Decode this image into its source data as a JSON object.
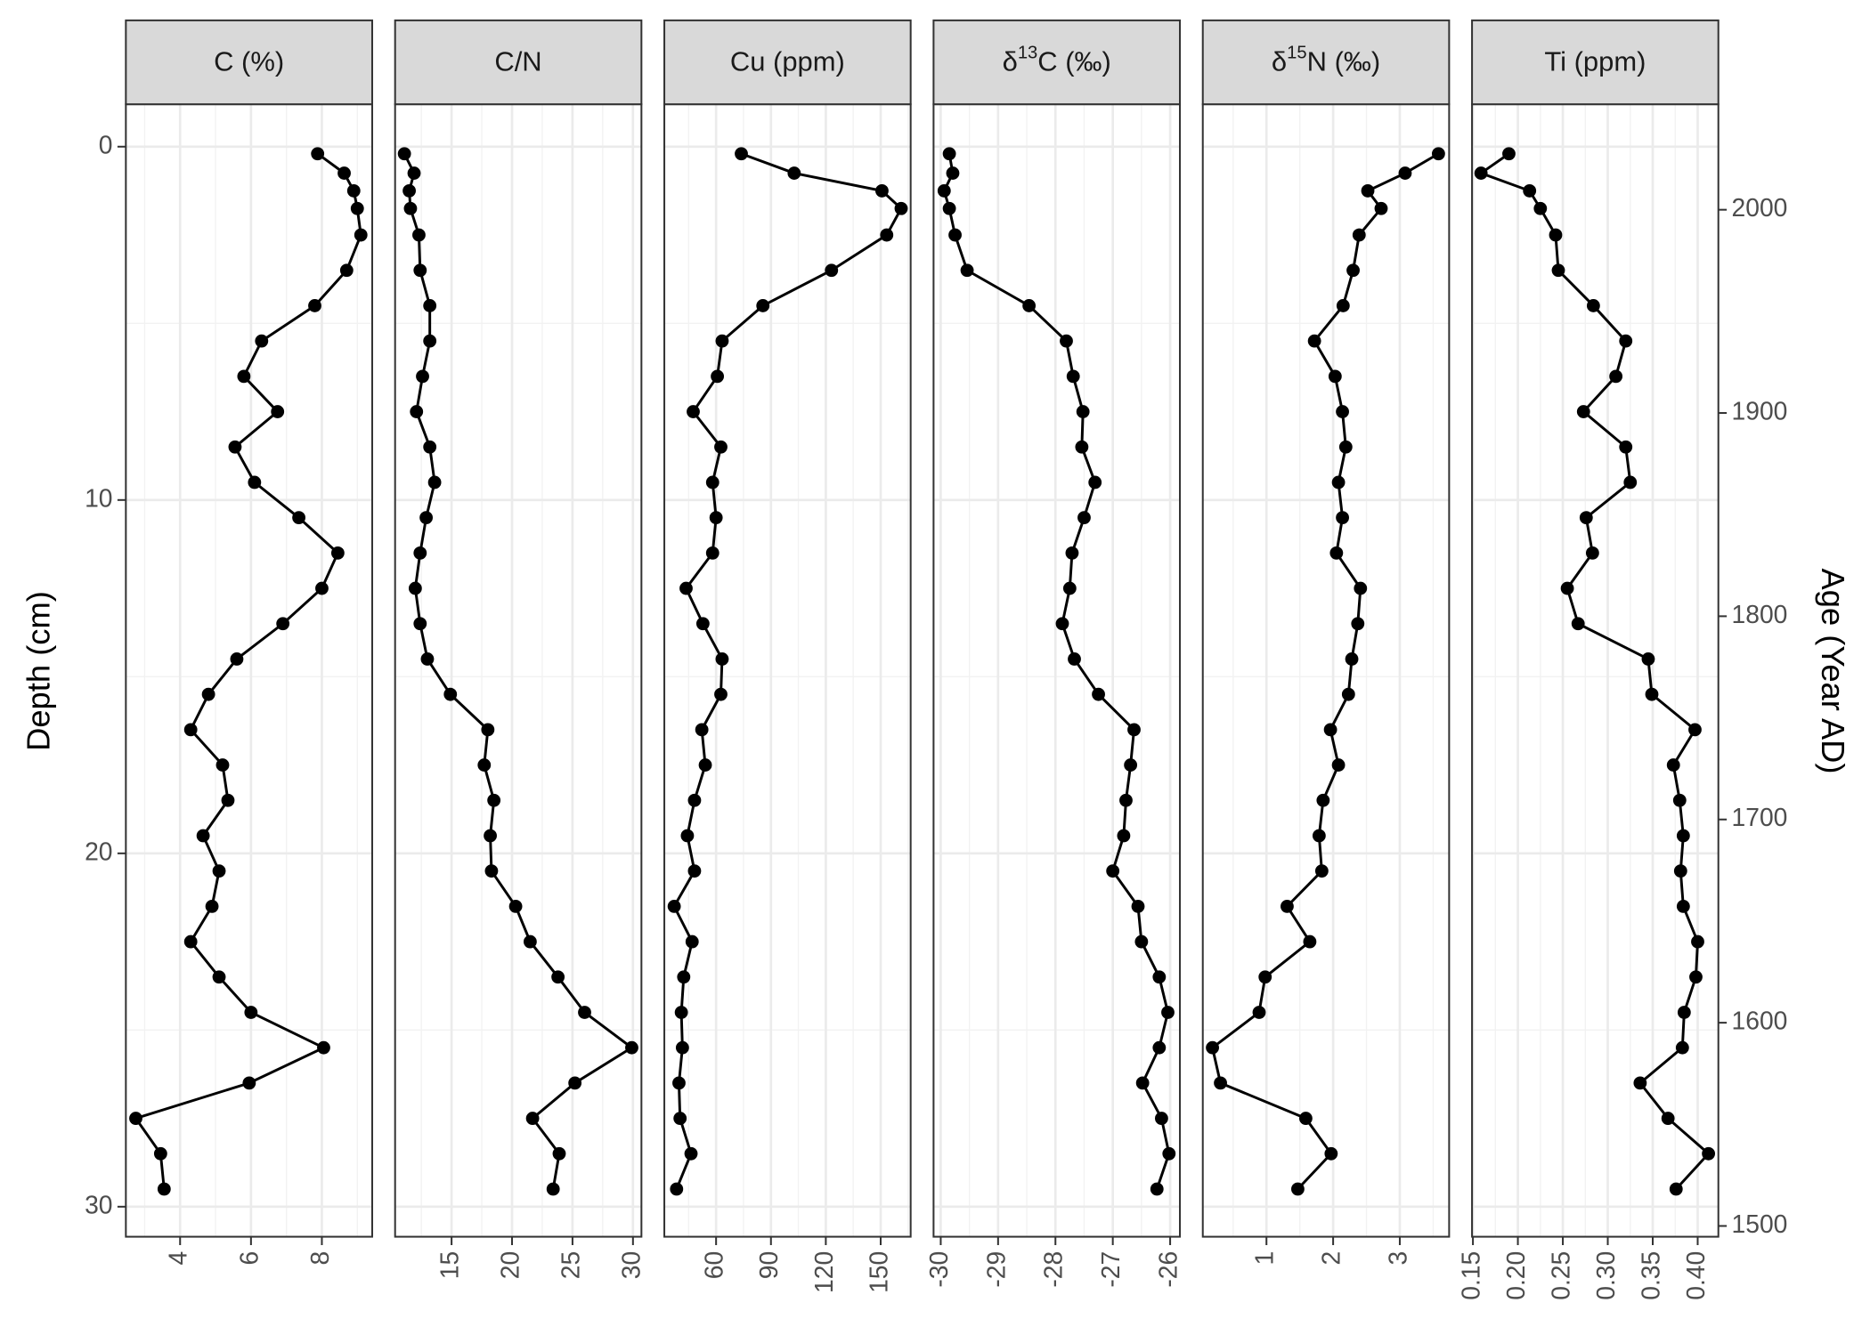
{
  "chart_data": {
    "type": "line",
    "ylabel": "Depth (cm)",
    "y2label": "Age (Year AD)",
    "ylim": [
      30.85,
      -1.2
    ],
    "yticks": [
      0,
      10,
      20,
      30
    ],
    "y2lim": [
      1494.7,
      2051.9
    ],
    "y2ticks": [
      1500,
      1600,
      1700,
      1800,
      1900,
      2000
    ],
    "color": "#000000",
    "grid": true,
    "depth": [
      0.2,
      0.75,
      1.25,
      1.75,
      2.5,
      3.5,
      4.5,
      5.5,
      6.5,
      7.5,
      8.5,
      9.5,
      10.5,
      11.5,
      12.5,
      13.5,
      14.5,
      15.5,
      16.5,
      17.5,
      18.5,
      19.5,
      20.5,
      21.5,
      22.5,
      23.5,
      24.5,
      25.5,
      26.5,
      27.5,
      28.5,
      29.5
    ],
    "panels": [
      {
        "title": "C (%)",
        "xlim": [
          2.47,
          9.42
        ],
        "xticks": [
          4,
          6,
          8
        ],
        "values": [
          7.88,
          8.63,
          8.9,
          9.0,
          9.1,
          8.7,
          7.8,
          6.3,
          5.8,
          6.75,
          5.55,
          6.1,
          7.35,
          8.45,
          8.0,
          6.9,
          5.6,
          4.8,
          4.3,
          5.2,
          5.35,
          4.65,
          5.1,
          4.9,
          4.3,
          5.1,
          6.0,
          8.05,
          5.95,
          2.75,
          3.45,
          3.55
        ]
      },
      {
        "title": "C/N",
        "xlim": [
          10.33,
          30.7
        ],
        "xticks": [
          15,
          20,
          25,
          30
        ],
        "values": [
          11.1,
          11.9,
          11.5,
          11.6,
          12.3,
          12.4,
          13.2,
          13.2,
          12.6,
          12.1,
          13.2,
          13.6,
          12.9,
          12.4,
          12.0,
          12.4,
          13.0,
          14.9,
          18.0,
          17.7,
          18.5,
          18.2,
          18.3,
          20.3,
          21.5,
          23.8,
          26.0,
          29.9,
          25.2,
          21.7,
          23.9,
          23.4
        ]
      },
      {
        "title": "Cu (ppm)",
        "xlim": [
          31.7,
          166.4
        ],
        "xticks": [
          60,
          90,
          120,
          150
        ],
        "values": [
          73.8,
          102.7,
          150.7,
          161.2,
          153.3,
          123.1,
          85.6,
          63.3,
          60.7,
          47.5,
          62.6,
          58.1,
          60,
          58.1,
          43.6,
          52.8,
          63.3,
          62.6,
          52.2,
          54.1,
          48.2,
          44.3,
          48.2,
          37.1,
          46.9,
          42.3,
          41,
          41.6,
          39.7,
          40.3,
          46.3,
          38.4
        ]
      },
      {
        "title": [
          "δ",
          "13",
          "C (‰)"
        ],
        "xlim": [
          -30.125,
          -25.83
        ],
        "xticks": [
          -30,
          -29,
          -28,
          -27,
          -26
        ],
        "values": [
          -29.85,
          -29.79,
          -29.94,
          -29.85,
          -29.75,
          -29.54,
          -28.46,
          -27.81,
          -27.69,
          -27.52,
          -27.54,
          -27.31,
          -27.5,
          -27.71,
          -27.75,
          -27.88,
          -27.67,
          -27.25,
          -26.63,
          -26.69,
          -26.77,
          -26.81,
          -27.0,
          -26.56,
          -26.5,
          -26.19,
          -26.04,
          -26.19,
          -26.48,
          -26.15,
          -26.02,
          -26.23
        ]
      },
      {
        "title": [
          "δ",
          "15",
          "N (‰)"
        ],
        "xlim": [
          0.045,
          3.74
        ],
        "xticks": [
          1,
          2,
          3
        ],
        "values": [
          3.58,
          3.08,
          2.52,
          2.72,
          2.39,
          2.3,
          2.15,
          1.72,
          2.03,
          2.14,
          2.19,
          2.08,
          2.14,
          2.05,
          2.41,
          2.37,
          2.28,
          2.23,
          1.96,
          2.08,
          1.85,
          1.79,
          1.83,
          1.31,
          1.65,
          0.98,
          0.89,
          0.19,
          0.31,
          1.59,
          1.97,
          1.47
        ]
      },
      {
        "title": "Ti (ppm)",
        "xlim": [
          0.149,
          0.423
        ],
        "xticks": [
          0.15,
          {
            "value": 0.2,
            "label": "0.20"
          },
          0.25,
          {
            "value": 0.3,
            "label": "0.30"
          },
          0.35,
          {
            "value": 0.4,
            "label": "0.40"
          }
        ],
        "values": [
          0.19,
          0.159,
          0.213,
          0.225,
          0.242,
          0.245,
          0.284,
          0.32,
          0.309,
          0.273,
          0.32,
          0.325,
          0.276,
          0.283,
          0.255,
          0.267,
          0.345,
          0.349,
          0.397,
          0.373,
          0.38,
          0.384,
          0.381,
          0.384,
          0.4,
          0.398,
          0.385,
          0.383,
          0.336,
          0.367,
          0.412,
          0.376
        ]
      }
    ]
  }
}
